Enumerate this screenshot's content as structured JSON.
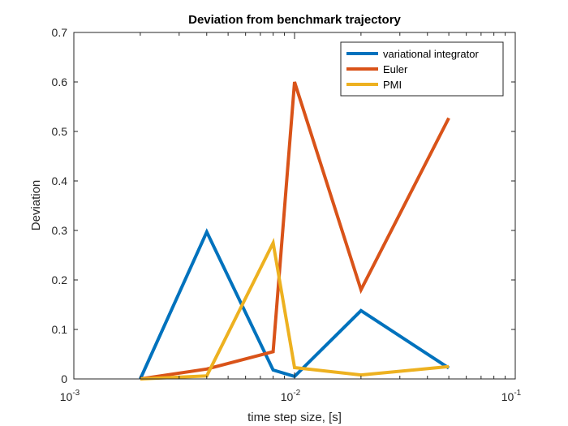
{
  "chart_data": {
    "type": "line",
    "title": "Deviation from benchmark trajectory",
    "xlabel": "time step size, [s]",
    "ylabel": "Deviation",
    "xscale": "log",
    "xlim": [
      0.001,
      0.1
    ],
    "ylim": [
      0,
      0.7
    ],
    "yticks": [
      "0",
      "0.1",
      "0.2",
      "0.3",
      "0.4",
      "0.5",
      "0.6",
      "0.7"
    ],
    "xticks": [
      {
        "base": "10",
        "exp": "-3"
      },
      {
        "base": "10",
        "exp": "-2"
      },
      {
        "base": "10",
        "exp": "-1"
      }
    ],
    "grid": false,
    "legend_position": "top-right",
    "x": [
      0.002,
      0.004,
      0.008,
      0.01,
      0.02,
      0.05
    ],
    "series": [
      {
        "name": "variational integrator",
        "color": "#0072BD",
        "values": [
          0.0,
          0.297,
          0.018,
          0.005,
          0.138,
          0.022
        ]
      },
      {
        "name": "Euler",
        "color": "#D95319",
        "values": [
          0.0,
          0.02,
          0.055,
          0.6,
          0.18,
          0.527
        ]
      },
      {
        "name": "PMI",
        "color": "#EDB120",
        "values": [
          0.0,
          0.006,
          0.275,
          0.023,
          0.008,
          0.025
        ]
      }
    ]
  }
}
